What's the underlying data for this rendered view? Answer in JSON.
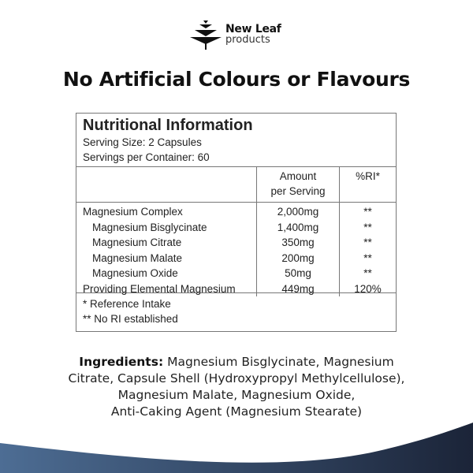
{
  "brand": {
    "name": "New Leaf",
    "sub": "products",
    "icon": "tree-leaf-logo"
  },
  "headline": "No Artificial Colours or Flavours",
  "panel": {
    "title": "Nutritional Information",
    "serving_size": "Serving Size: 2 Capsules",
    "servings": "Servings per Container: 60",
    "col_amount": [
      "Amount",
      "per Serving"
    ],
    "col_ri": "%RI*",
    "rows": [
      {
        "name": "Magnesium Complex",
        "amount": "2,000mg",
        "ri": "**"
      },
      {
        "name": "Magnesium Bisglycinate",
        "amount": "1,400mg",
        "ri": "**"
      },
      {
        "name": "Magnesium Citrate",
        "amount": "350mg",
        "ri": "**"
      },
      {
        "name": "Magnesium Malate",
        "amount": "200mg",
        "ri": "**"
      },
      {
        "name": "Magnesium Oxide",
        "amount": "50mg",
        "ri": "**"
      },
      {
        "name": "Providing Elemental Magnesium",
        "amount": "449mg",
        "ri": "120%"
      }
    ],
    "foot1": "* Reference Intake",
    "foot2": "** No RI established"
  },
  "ingredients": {
    "label": "Ingredients:",
    "lines": [
      " Magnesium Bisglycinate, Magnesium",
      "Citrate, Capsule Shell (Hydroxypropyl Methylcellulose),",
      "Magnesium Malate, Magnesium Oxide,",
      "Anti-Caking Agent (Magnesium Stearate)"
    ]
  },
  "colors": {
    "wave_left": "#4d6d94",
    "wave_right": "#1b2438"
  }
}
